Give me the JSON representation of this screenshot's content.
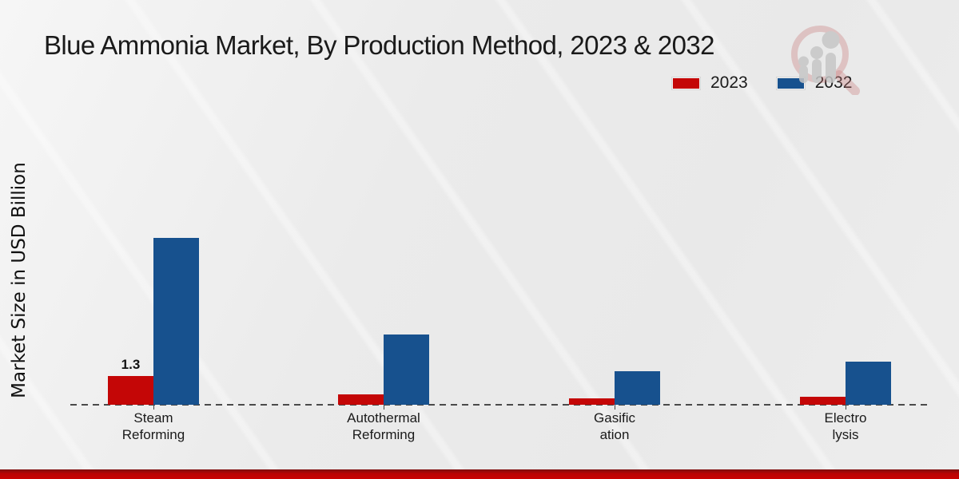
{
  "title": "Blue Ammonia Market, By Production Method, 2023 & 2032",
  "y_axis_label": "Market Size in USD Billion",
  "legend": {
    "items": [
      {
        "label": "2023",
        "color": "#c40606"
      },
      {
        "label": "2032",
        "color": "#17518e"
      }
    ]
  },
  "colors": {
    "accent_red": "#c40606",
    "accent_blue": "#17518e",
    "baseline_gray": "#4a4a4a",
    "footer_red": "#c00404"
  },
  "watermark_icon": "magnifier-growth-chart-logo",
  "chart_data": {
    "type": "bar",
    "title": "Blue Ammonia Market, By Production Method, 2023 & 2032",
    "categories": [
      "Steam Reforming",
      "Autothermal Reforming",
      "Gasification",
      "Electrolysis"
    ],
    "category_label_lines": [
      [
        "Steam",
        "Reforming"
      ],
      [
        "Autothermal",
        "Reforming"
      ],
      [
        "Gasific",
        "ation"
      ],
      [
        "Electro",
        "lysis"
      ]
    ],
    "series": [
      {
        "name": "2023",
        "color": "#c40606",
        "values": [
          1.3,
          0.47,
          0.29,
          0.36
        ]
      },
      {
        "name": "2032",
        "color": "#17518e",
        "values": [
          7.55,
          3.18,
          1.52,
          1.95
        ]
      }
    ],
    "annotations": [
      {
        "category": "Steam Reforming",
        "series": "2023",
        "text": "1.3"
      }
    ],
    "xlabel": "",
    "ylabel": "Market Size in USD Billion",
    "ylim": [
      0,
      8
    ],
    "grid": false,
    "axis_line": "dashed-baseline-only",
    "legend_position": "top-right"
  }
}
